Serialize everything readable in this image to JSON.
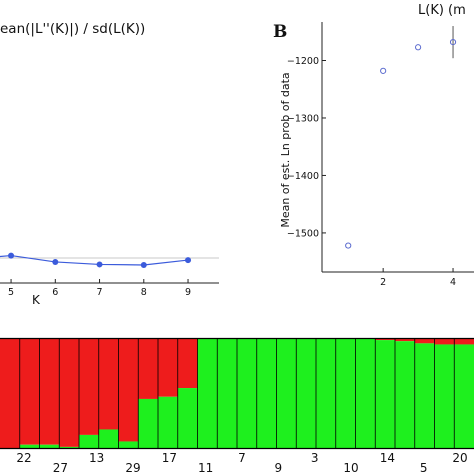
{
  "chart_data": [
    {
      "type": "line",
      "title": "ean(|L''(K)|) / sd(L(K))",
      "xlabel": "K",
      "ylabel": "",
      "x": [
        4,
        5,
        6,
        7,
        8,
        9
      ],
      "values": [
        11.5,
        16.5,
        8.0,
        4.7,
        4.0,
        10.5
      ],
      "xlim": [
        4.75,
        9.7
      ],
      "ylim": [
        -20,
        330
      ],
      "xticks": [
        "5",
        "6",
        "7",
        "8",
        "9"
      ],
      "baseline": 0,
      "line_color": "#3b5bdb",
      "grid": false
    },
    {
      "type": "scatter",
      "panel_label": "B",
      "title": "L(K) (m",
      "xlabel": "",
      "ylabel": "Mean of est. Ln prob of data",
      "x": [
        1,
        2,
        3,
        4
      ],
      "y": [
        -1522,
        -1218,
        -1177,
        -1168
      ],
      "errors": [
        0,
        0,
        0,
        28
      ],
      "xlim": [
        0.25,
        4.6
      ],
      "ylim": [
        -1568,
        -1133
      ],
      "xticks": [
        "2",
        "4"
      ],
      "yticks": [
        "-1200",
        "-1300",
        "-1400",
        "-1500"
      ],
      "marker_color": "#5c6ccf",
      "grid": false
    },
    {
      "type": "bar",
      "subtype": "stacked-structure",
      "categories": [
        "22",
        "27",
        "13",
        "29",
        "17",
        "11",
        "7",
        "9",
        "3",
        "10",
        "14",
        "5",
        "20"
      ],
      "cluster_colors": [
        "#ee1c1c",
        "#1ef01e"
      ],
      "individuals_red_fraction": [
        1.0,
        0.97,
        0.97,
        0.99,
        0.88,
        0.83,
        0.94,
        0.55,
        0.53,
        0.45,
        0.0,
        0.0,
        0.0,
        0.0,
        0.0,
        0.0,
        0.0,
        0.0,
        0.0,
        0.01,
        0.02,
        0.04,
        0.05,
        0.05
      ],
      "ylim": [
        0,
        1
      ]
    }
  ]
}
